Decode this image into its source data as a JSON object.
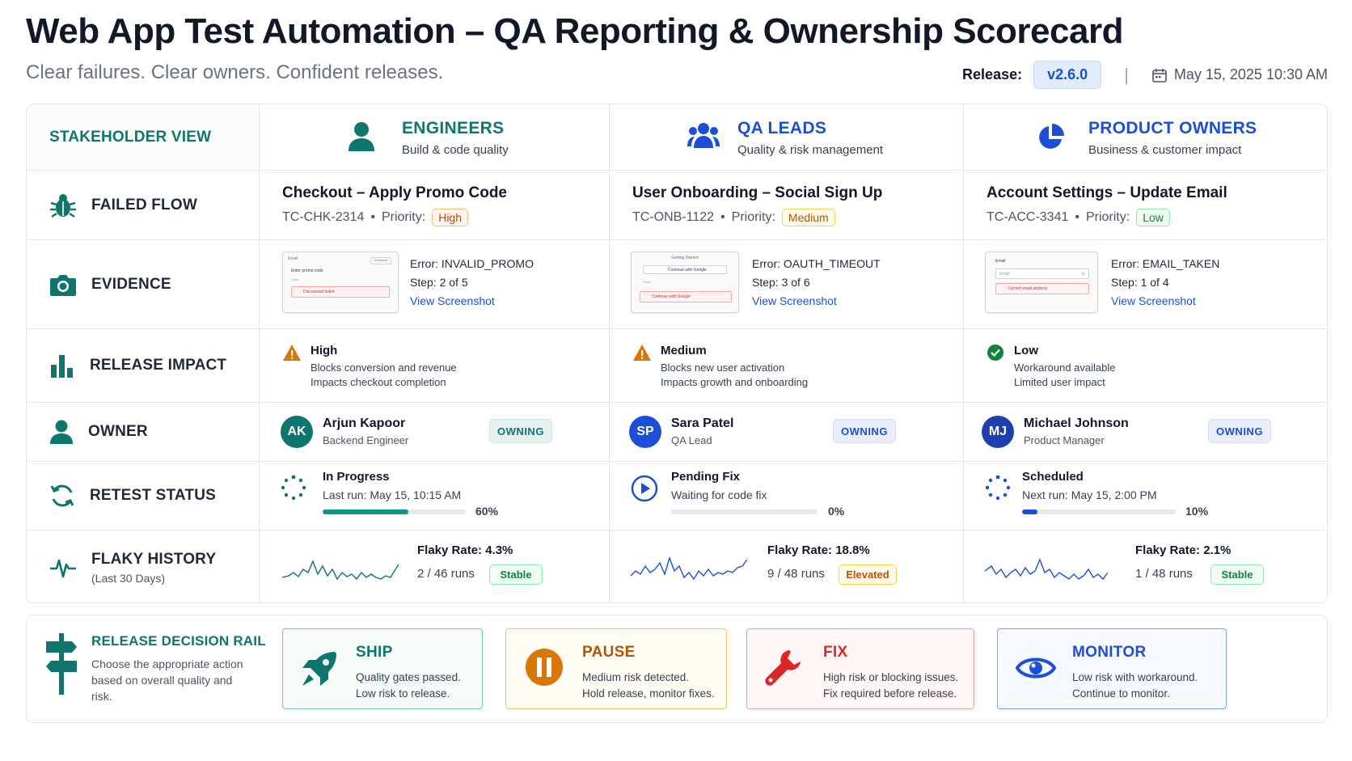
{
  "header": {
    "title": "Web App Test Automation – QA Reporting & Ownership Scorecard",
    "subtitle": "Clear failures. Clear owners. Confident releases.",
    "release_label": "Release:",
    "release_version": "v2.6.0",
    "separator": "|",
    "datetime": "May 15, 2025 10:30 AM"
  },
  "stakeholder_view_label": "STAKEHOLDER VIEW",
  "stakeholders": [
    {
      "name": "ENGINEERS",
      "desc": "Build & code quality",
      "icon": "person-icon",
      "color": "#0f766e"
    },
    {
      "name": "QA LEADS",
      "desc": "Quality & risk management",
      "icon": "team-icon",
      "color": "#1d4ed8"
    },
    {
      "name": "PRODUCT OWNERS",
      "desc": "Business & customer impact",
      "icon": "pie-chart-icon",
      "color": "#1d4ed8"
    }
  ],
  "row_labels": {
    "failed_flow": "FAILED FLOW",
    "evidence": "EVIDENCE",
    "release_impact": "RELEASE IMPACT",
    "owner": "OWNER",
    "retest_status": "RETEST STATUS",
    "flaky_history": "FLAKY HISTORY",
    "flaky_history_sub": "(Last 30 Days)"
  },
  "flows": [
    {
      "title": "Checkout – Apply Promo Code",
      "id": "TC-CHK-2314",
      "priority_label": "Priority:",
      "priority": "High",
      "error": "Error: INVALID_PROMO",
      "step": "Step: 2 of 5",
      "link": "View Screenshot",
      "impact_level": "High",
      "impact_l1": "Blocks conversion and revenue",
      "impact_l2": "Impacts checkout completion",
      "owner_initials": "AK",
      "owner_name": "Arjun Kapoor",
      "owner_role": "Backend Engineer",
      "owning": "OWNING",
      "avatar_color": "#0f766e",
      "retest_status": "In Progress",
      "retest_run": "Last run: May 15, 10:15 AM",
      "progress": 60,
      "progress_label": "60%",
      "progress_color": "#0f9488",
      "flaky_rate": "Flaky Rate: 4.3%",
      "runs": "2 / 46 runs",
      "stability": "Stable"
    },
    {
      "title": "User Onboarding – Social Sign Up",
      "id": "TC-ONB-1122",
      "priority_label": "Priority:",
      "priority": "Medium",
      "error": "Error: OAUTH_TIMEOUT",
      "step": "Step: 3 of 6",
      "link": "View Screenshot",
      "impact_level": "Medium",
      "impact_l1": "Blocks new user activation",
      "impact_l2": "Impacts growth and onboarding",
      "owner_initials": "SP",
      "owner_name": "Sara Patel",
      "owner_role": "QA Lead",
      "owning": "OWNING",
      "avatar_color": "#1d4ed8",
      "retest_status": "Pending Fix",
      "retest_run": "Waiting for code fix",
      "progress": 0,
      "progress_label": "0%",
      "progress_color": "#1d4ed8",
      "flaky_rate": "Flaky Rate: 18.8%",
      "runs": "9 / 48 runs",
      "stability": "Elevated"
    },
    {
      "title": "Account Settings – Update Email",
      "id": "TC-ACC-3341",
      "priority_label": "Priority:",
      "priority": "Low",
      "error": "Error: EMAIL_TAKEN",
      "step": "Step: 1 of 4",
      "link": "View Screenshot",
      "impact_level": "Low",
      "impact_l1": "Workaround available",
      "impact_l2": "Limited user impact",
      "owner_initials": "MJ",
      "owner_name": "Michael Johnson",
      "owner_role": "Product Manager",
      "owning": "OWNING",
      "avatar_color": "#1e40af",
      "retest_status": "Scheduled",
      "retest_run": "Next run: May 15, 2:00 PM",
      "progress": 10,
      "progress_label": "10%",
      "progress_color": "#1d4ed8",
      "flaky_rate": "Flaky Rate: 2.1%",
      "runs": "1 / 48 runs",
      "stability": "Stable"
    }
  ],
  "thumbnails": [
    {
      "t1": "Email",
      "t2": "Enter promo code",
      "t3": "Code",
      "t4": "Discount",
      "err": "Discounted failed",
      "corner": "Checkout"
    },
    {
      "t1": "Getting Started",
      "t2": "Continue with Google",
      "t3": "Email",
      "err": "Continue with Google"
    },
    {
      "t1": "Email",
      "t2": "Email",
      "err": "Current email address"
    }
  ],
  "rail": {
    "title": "RELEASE DECISION RAIL",
    "desc": "Choose the appropriate action based on overall quality and risk.",
    "cards": [
      {
        "name": "SHIP",
        "l1": "Quality gates passed.",
        "l2": "Low risk to release."
      },
      {
        "name": "PAUSE",
        "l1": "Medium risk detected.",
        "l2": "Hold release, monitor fixes."
      },
      {
        "name": "FIX",
        "l1": "High risk or blocking issues.",
        "l2": "Fix required before release."
      },
      {
        "name": "MONITOR",
        "l1": "Low risk with workaround.",
        "l2": "Continue to monitor."
      }
    ]
  }
}
